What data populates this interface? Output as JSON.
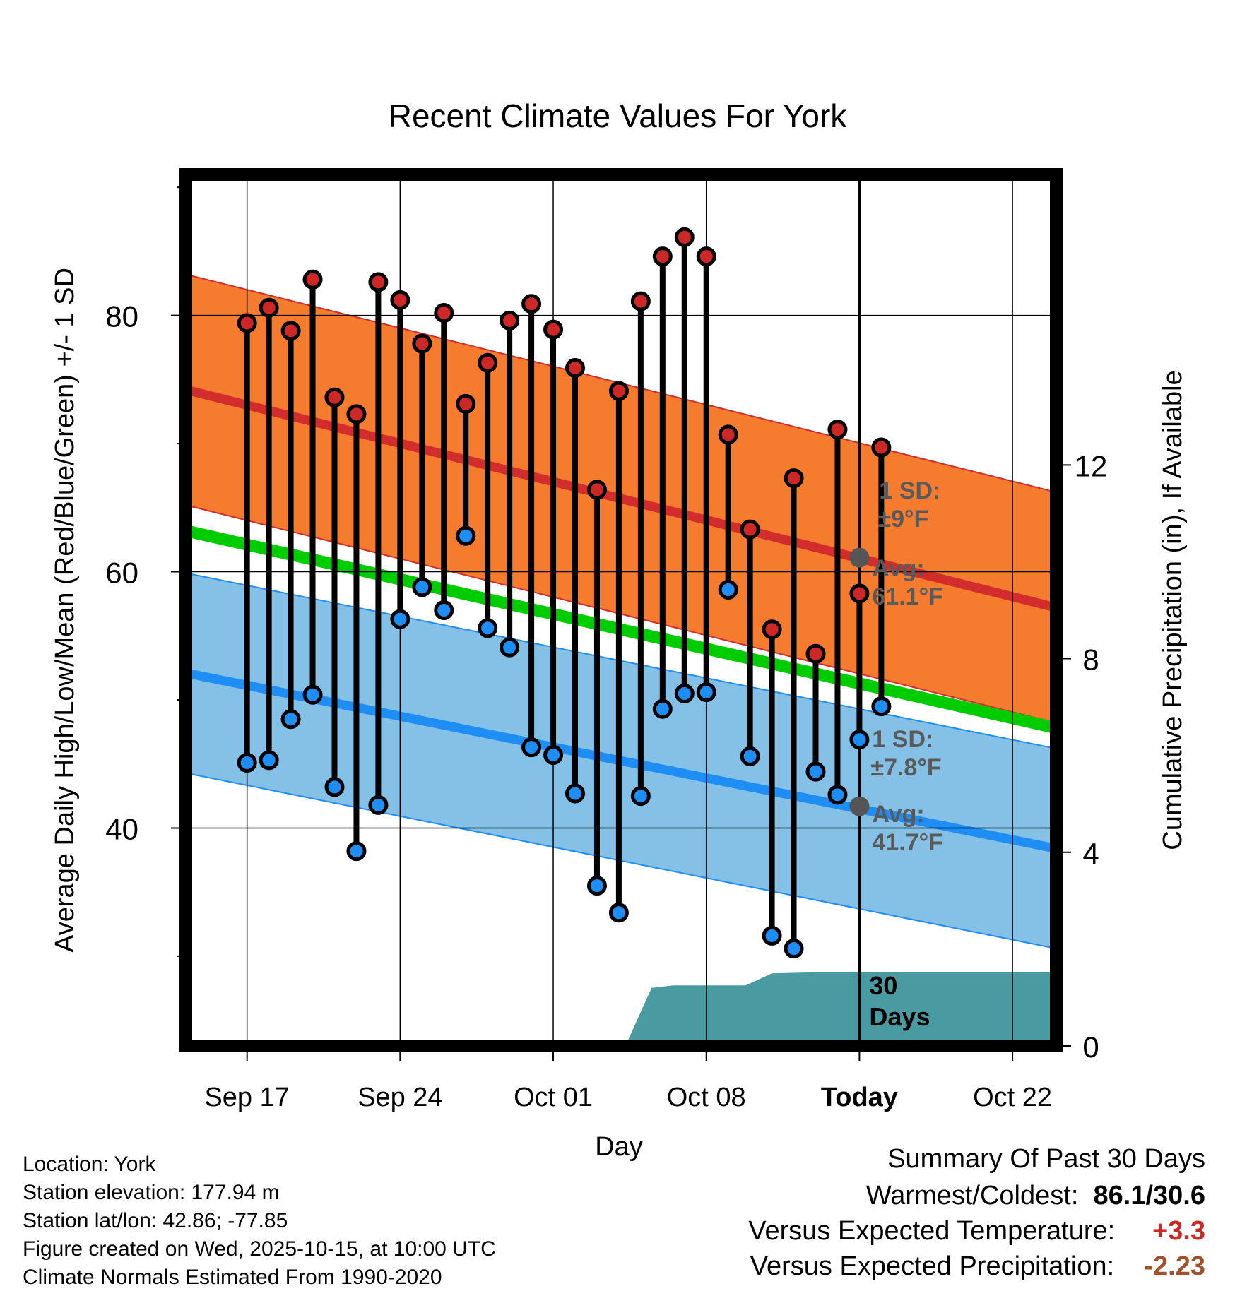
{
  "colors": {
    "high_band": "#F57B2F",
    "high_line": "#D32C2C",
    "low_band": "#85C1E6",
    "low_line": "#1E8EF5",
    "mean_line": "#00CC00",
    "precip_fill": "#4A9BA1",
    "high_dot": "#CC2828",
    "low_dot": "#1E8EF5",
    "marker_gray": "#555555",
    "annot_gray": "#5A5A5A",
    "warm_value": "#CC2828",
    "precip_value": "#A0522D"
  },
  "chart_data": {
    "type": "range-dot",
    "title": "Recent Climate Values For York",
    "xlabel": "Day",
    "ylabel": "Average Daily High/Low/Mean (Red/Blue/Green) +/- 1 SD",
    "y2label": "Cumulative Precipitation (in), If Available",
    "xlim": [
      -2.8,
      37.0
    ],
    "ylim": [
      23,
      91
    ],
    "y_ticks": [
      40,
      60,
      80
    ],
    "y_minor_ticks": [
      30,
      50,
      70,
      90
    ],
    "y2lim": [
      0,
      18
    ],
    "y2_ticks": [
      0,
      4,
      8,
      12
    ],
    "x_ticks": [
      {
        "day": 0,
        "label": "Sep 17"
      },
      {
        "day": 7,
        "label": "Sep 24"
      },
      {
        "day": 14,
        "label": "Oct 01"
      },
      {
        "day": 21,
        "label": "Oct 08"
      },
      {
        "day": 28,
        "label": "Today"
      },
      {
        "day": 35,
        "label": "Oct 22"
      }
    ],
    "today_day": 28,
    "highs": [
      79.4,
      80.6,
      78.8,
      82.8,
      73.6,
      72.3,
      82.6,
      81.2,
      77.8,
      80.2,
      73.1,
      76.3,
      79.6,
      80.9,
      78.9,
      75.9,
      66.4,
      74.1,
      81.1,
      84.6,
      86.1,
      84.6,
      70.7,
      63.3,
      55.5,
      67.3,
      53.6,
      71.1,
      58.3,
      69.7
    ],
    "lows": [
      45.1,
      45.3,
      48.5,
      50.4,
      43.2,
      38.2,
      41.8,
      56.3,
      58.8,
      57.0,
      62.8,
      55.6,
      54.1,
      46.3,
      45.7,
      42.7,
      35.5,
      33.4,
      42.5,
      49.3,
      50.5,
      50.6,
      58.6,
      45.6,
      31.6,
      30.6,
      44.4,
      42.6,
      46.9,
      49.5
    ],
    "high_normal": {
      "start_day": -2.8,
      "start": 74.2,
      "end_day": 37.0,
      "end": 57.2
    },
    "high_sd": 9.0,
    "low_normal": {
      "start_day": -2.8,
      "start": 52.1,
      "end_day": 37.0,
      "end": 38.4
    },
    "low_sd": 7.8,
    "mean_normal": {
      "start_day": -2.8,
      "start": 63.2,
      "end_day": 37.0,
      "end": 47.8
    },
    "precip_cumulative": [
      [
        17.3,
        0.0
      ],
      [
        18.5,
        1.2
      ],
      [
        19.5,
        1.25
      ],
      [
        21.5,
        1.25
      ],
      [
        22.8,
        1.25
      ],
      [
        24.0,
        1.5
      ],
      [
        26.0,
        1.52
      ],
      [
        28.0,
        1.52
      ],
      [
        37.0,
        1.52
      ]
    ],
    "annotations": {
      "high_sd_label": "1 SD:",
      "high_sd_value": "±9°F",
      "high_avg_label": "Avg:",
      "high_avg_value": "61.1°F",
      "high_avg_number": 61.1,
      "low_sd_label": "1 SD:",
      "low_sd_value": "±7.8°F",
      "low_avg_label": "Avg:",
      "low_avg_value": "41.7°F",
      "low_avg_number": 41.7,
      "precip_label_1": "30",
      "precip_label_2": "Days"
    }
  },
  "station": {
    "location": "Location: York",
    "elevation": "Station elevation: 177.94 m",
    "latlon": "Station lat/lon: 42.86; -77.85",
    "created": "Figure created on Wed, 2025-10-15, at 10:00 UTC",
    "normals": "Climate Normals Estimated From 1990-2020"
  },
  "summary": {
    "title": "Summary Of Past 30 Days",
    "warmest_label": "Warmest/Coldest:",
    "warmest_value": "86.1/30.6",
    "temp_label": "Versus Expected Temperature:",
    "temp_value": "+3.3",
    "precip_label": "Versus Expected Precipitation:",
    "precip_value": "-2.23"
  }
}
